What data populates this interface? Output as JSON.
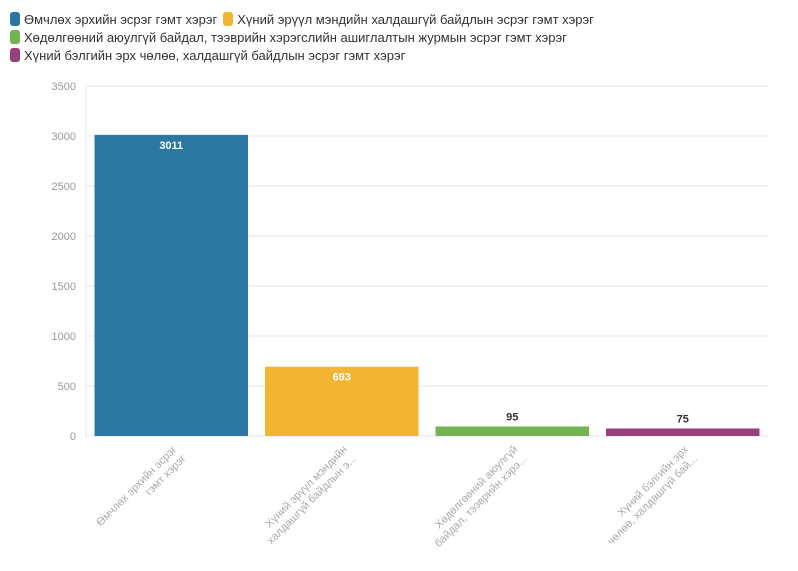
{
  "chart_data": {
    "type": "bar",
    "categories": [
      "Өмчлөх эрхийн эсрэг гэмт хэрэг",
      "Хүний эрүүл мэндийн халдашгүй байдлын эсрэг гэмт хэрэг",
      "Хөдөлгөөний аюулгүй байдал, тээврийн хэрэгслийн ашиглалтын журмын эсрэг гэмт хэрэг",
      "Хүний бэлгийн эрх чөлөө, халдашгүй байдлын эсрэг гэмт хэрэг"
    ],
    "x_tick_labels": [
      [
        "Өмчлөх эрхийн эсрэг",
        "гэмт хэрэг"
      ],
      [
        "Хүний эрүүл мэндийн",
        "халдашгүй байдлын э..."
      ],
      [
        "Хөдөлгөөний аюулгүй",
        "байдал, тээврийн хэрэ..."
      ],
      [
        "Хүний бэлгийн эрх",
        "чөлөө, халдашгүй бай..."
      ]
    ],
    "values": [
      3011,
      693,
      95,
      75
    ],
    "data_labels": [
      "3011",
      "693",
      "95",
      "75"
    ],
    "colors": [
      "#2a77a2",
      "#f2b531",
      "#72b352",
      "#9a3f7e"
    ],
    "ylim": [
      0,
      3500
    ],
    "y_ticks": [
      "0",
      "500",
      "1000",
      "1500",
      "2000",
      "2500",
      "3000",
      "3500"
    ],
    "grid": true,
    "legend_position": "top-left",
    "title": "",
    "xlabel": "",
    "ylabel": ""
  }
}
